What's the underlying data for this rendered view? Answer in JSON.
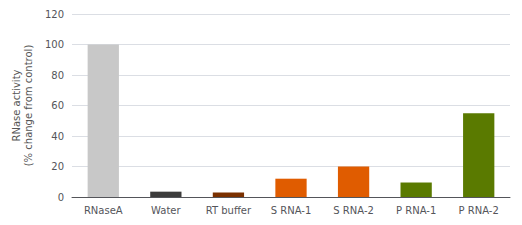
{
  "chart_data": {
    "type": "bar",
    "categories": [
      "RNaseA",
      "Water",
      "RT buffer",
      "S RNA-1",
      "S RNA-2",
      "P RNA-1",
      "P RNA-2"
    ],
    "values": [
      100,
      3.5,
      3.0,
      12,
      20,
      9.5,
      55
    ],
    "colors": [
      "#c8c8c8",
      "#3c3c3c",
      "#7a3000",
      "#e05c00",
      "#e05c00",
      "#5a7a00",
      "#5a7a00"
    ],
    "ylabel": "RNase activity\n(% change from control)",
    "ylim": [
      0,
      120
    ],
    "yticks": [
      0,
      20,
      40,
      60,
      80,
      100,
      120
    ],
    "grid": true
  }
}
